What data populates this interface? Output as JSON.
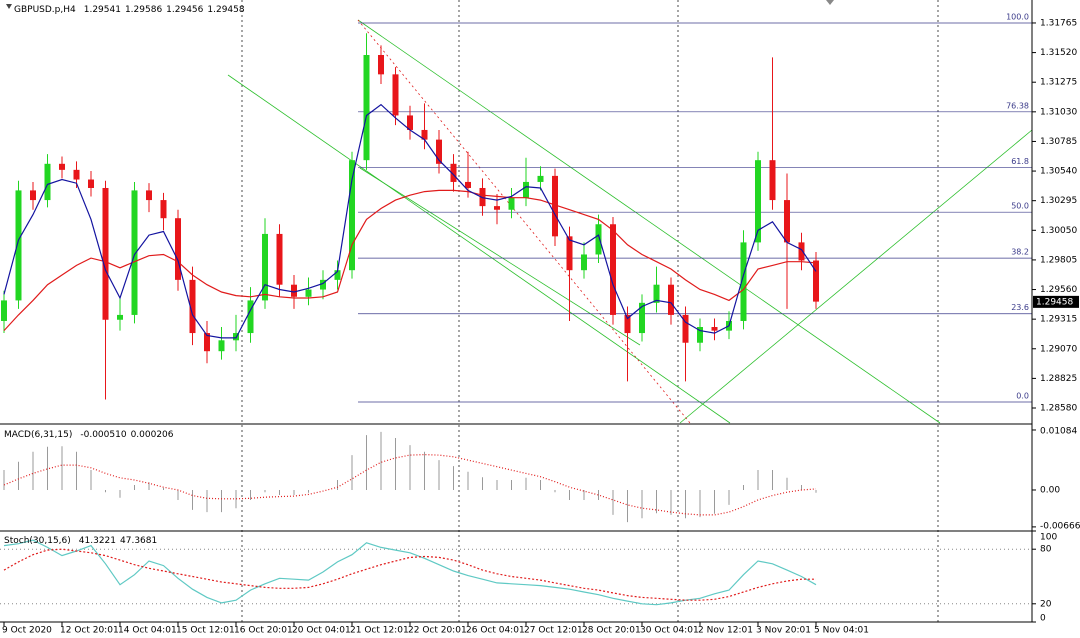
{
  "chart_data": [
    {
      "type": "candlestick",
      "title": "GBPUSD.p,H4",
      "readout": [
        1.29541,
        1.29586,
        1.29456,
        1.29458
      ],
      "categories": [
        "9 Oct 2020",
        null,
        null,
        null,
        "12 Oct 20:01",
        null,
        null,
        null,
        "14 Oct 04:01",
        null,
        null,
        null,
        "15 Oct 12:01",
        null,
        null,
        null,
        "16 Oct 20:01",
        null,
        null,
        null,
        "20 Oct 04:01",
        null,
        null,
        null,
        "21 Oct 12:01",
        null,
        null,
        null,
        "22 Oct 20:01",
        null,
        null,
        null,
        "26 Oct 04:01",
        null,
        null,
        null,
        "27 Oct 12:01",
        null,
        null,
        null,
        "28 Oct 20:01",
        null,
        null,
        null,
        "30 Oct 04:01",
        null,
        null,
        null,
        "2 Nov 12:01",
        null,
        null,
        null,
        "3 Nov 20:01",
        null,
        null,
        null,
        "5 Nov 04:01"
      ],
      "open": [
        1.293,
        1.2947,
        1.3038,
        1.303,
        1.306,
        1.3055,
        1.3047,
        1.304,
        1.2931,
        1.2935,
        1.3038,
        1.303,
        1.3015,
        1.2964,
        1.292,
        1.2905,
        1.2914,
        1.292,
        1.2947,
        1.3002,
        1.296,
        1.295,
        1.2956,
        1.2964,
        1.2972,
        1.3063,
        1.315,
        1.3134,
        1.31,
        1.3088,
        1.308,
        1.306,
        1.3045,
        1.304,
        1.3025,
        1.3022,
        1.3032,
        1.3045,
        1.305,
        1.3,
        1.2972,
        1.2985,
        1.301,
        1.2935,
        1.292,
        1.2945,
        1.296,
        1.2935,
        1.2912,
        1.2925,
        1.2922,
        1.293,
        1.2995,
        1.3063,
        1.303,
        1.2995,
        1.298
      ],
      "high": [
        1.2955,
        1.3046,
        1.3045,
        1.3068,
        1.3066,
        1.3062,
        1.3054,
        1.3046,
        1.295,
        1.3045,
        1.3044,
        1.3036,
        1.3022,
        1.2975,
        1.293,
        1.2925,
        1.2935,
        1.2958,
        1.3015,
        1.301,
        1.2968,
        1.2966,
        1.2972,
        1.298,
        1.307,
        1.3168,
        1.3158,
        1.314,
        1.3108,
        1.311,
        1.3088,
        1.3068,
        1.307,
        1.3048,
        1.3035,
        1.304,
        1.3065,
        1.3058,
        1.3056,
        1.3008,
        1.2995,
        1.3018,
        1.3016,
        1.2942,
        1.2952,
        1.2975,
        1.2966,
        1.2942,
        1.2932,
        1.2932,
        1.2938,
        1.3005,
        1.307,
        1.3148,
        1.3052,
        1.3003,
        1.2987
      ],
      "low": [
        1.292,
        1.294,
        1.3022,
        1.3024,
        1.3048,
        1.304,
        1.3033,
        1.2865,
        1.2922,
        1.2928,
        1.302,
        1.3005,
        1.2955,
        1.291,
        1.2895,
        1.2898,
        1.2905,
        1.2912,
        1.294,
        1.295,
        1.294,
        1.2943,
        1.2948,
        1.2956,
        1.2965,
        1.3055,
        1.3126,
        1.3092,
        1.308,
        1.3072,
        1.3052,
        1.3037,
        1.3032,
        1.3017,
        1.301,
        1.3015,
        1.3025,
        1.3038,
        1.2992,
        1.293,
        1.2965,
        1.2978,
        1.2927,
        1.288,
        1.2913,
        1.2937,
        1.2927,
        1.288,
        1.2905,
        1.2914,
        1.2915,
        1.2923,
        1.2988,
        1.3022,
        1.294,
        1.2972,
        1.294
      ],
      "close": [
        1.2947,
        1.3038,
        1.303,
        1.306,
        1.3055,
        1.3047,
        1.304,
        1.2931,
        1.2935,
        1.3038,
        1.303,
        1.3015,
        1.2964,
        1.292,
        1.2905,
        1.2914,
        1.292,
        1.2947,
        1.3002,
        1.296,
        1.295,
        1.2956,
        1.2964,
        1.2972,
        1.3063,
        1.315,
        1.3134,
        1.31,
        1.3088,
        1.308,
        1.306,
        1.3045,
        1.304,
        1.3025,
        1.3022,
        1.3032,
        1.3045,
        1.305,
        1.3,
        1.2972,
        1.2985,
        1.301,
        1.2935,
        1.292,
        1.2945,
        1.296,
        1.2935,
        1.2912,
        1.2925,
        1.2922,
        1.293,
        1.2995,
        1.3063,
        1.303,
        1.2995,
        1.298,
        1.2946
      ],
      "up_color": "#22d622",
      "down_color": "#e8161a",
      "series": [
        {
          "color": "#e01b1b",
          "values": [
            1.2922,
            1.2935,
            1.2947,
            1.296,
            1.2968,
            1.2976,
            1.2982,
            1.2979,
            1.2974,
            1.2979,
            1.2984,
            1.2985,
            1.2979,
            1.2968,
            1.296,
            1.2954,
            1.2951,
            1.295,
            1.2952,
            1.295,
            1.2949,
            1.2949,
            1.295,
            1.2954,
            1.2993,
            1.3014,
            1.3023,
            1.303,
            1.3034,
            1.3037,
            1.3038,
            1.3038,
            1.3037,
            1.3034,
            1.3033,
            1.3032,
            1.3032,
            1.303,
            1.3026,
            1.3022,
            1.3018,
            1.3014,
            1.3005,
            1.2993,
            1.2985,
            1.2979,
            1.2973,
            1.2964,
            1.2956,
            1.2952,
            1.2947,
            1.2956,
            1.2973,
            1.2976,
            1.2979,
            1.2979,
            1.2978
          ]
        },
        {
          "color": "#1414a0",
          "values": [
            1.2952,
            1.2997,
            1.3018,
            1.3043,
            1.3047,
            1.3044,
            1.3014,
            1.2972,
            1.2949,
            1.2985,
            1.3001,
            1.3004,
            1.298,
            1.2935,
            1.2918,
            1.2916,
            1.2916,
            1.2939,
            1.296,
            1.2956,
            1.2954,
            1.2957,
            1.2961,
            1.2971,
            1.3047,
            1.31,
            1.3109,
            1.3098,
            1.3088,
            1.308,
            1.3063,
            1.3051,
            1.3038,
            1.3032,
            1.303,
            1.3033,
            1.3041,
            1.304,
            1.3018,
            1.2997,
            1.2993,
            1.3001,
            1.296,
            1.2932,
            1.2942,
            1.2947,
            1.2945,
            1.2929,
            1.2922,
            1.292,
            1.2926,
            1.2968,
            1.3005,
            1.3012,
            1.2995,
            1.2989,
            1.2971
          ]
        }
      ],
      "ylim": [
        1.28456,
        1.31955
      ],
      "yticks": [
        1.31765,
        {
          "value": 1.3152,
          "label": "1.31520"
        },
        1.31275,
        {
          "value": 1.3103,
          "label": "1.31030"
        },
        1.30785,
        {
          "value": 1.3054,
          "label": "1.30540"
        },
        1.30295,
        {
          "value": 1.3005,
          "label": "1.30050"
        },
        1.29805,
        {
          "value": 1.2956,
          "label": "1.29560"
        },
        1.29315,
        {
          "value": 1.2907,
          "label": "1.29070"
        },
        1.28825,
        {
          "value": 1.2858,
          "label": "1.28580"
        }
      ],
      "last_price": 1.29458,
      "fib_levels": [
        {
          "label": "100.0",
          "price": 1.31765
        },
        {
          "label": "76.38",
          "price": 1.3103
        },
        {
          "label": "61.8",
          "price": 1.3057
        },
        {
          "label": "50.0",
          "price": 1.302
        },
        {
          "label": "38.2",
          "price": 1.2982
        },
        {
          "label": "23.6",
          "price": 1.2936
        },
        {
          "label": "0.0",
          "price": 1.2863
        }
      ]
    },
    {
      "type": "macd",
      "title": "MACD(6,31,15)",
      "readout": [
        {
          "value": -0.00051,
          "label": "-0.000510"
        },
        0.000206
      ],
      "color": "#9a9a9a",
      "values": [
        0.0036,
        0.0051,
        0.0069,
        0.0078,
        0.0079,
        0.0069,
        0.0036,
        -0.0004,
        -0.0014,
        0.0009,
        0.0014,
        0.0004,
        -0.0018,
        -0.0036,
        -0.004,
        -0.004,
        -0.0033,
        -0.0018,
        -0.0004,
        -0.0009,
        -0.0009,
        -0.0005,
        0.0,
        0.0018,
        0.0063,
        0.0099,
        0.0105,
        0.0094,
        0.0081,
        0.0069,
        0.0054,
        0.0043,
        0.0033,
        0.0023,
        0.0018,
        0.0018,
        0.0022,
        0.0018,
        -0.0004,
        -0.0018,
        -0.0018,
        -0.0018,
        -0.0045,
        -0.0058,
        -0.0051,
        -0.0042,
        -0.0045,
        -0.0051,
        -0.0049,
        -0.0043,
        -0.0027,
        0.0009,
        0.0036,
        0.0036,
        0.0022,
        0.0009,
        -0.0005
      ],
      "signal_color": "#e01b1b",
      "signal": [
        0.0009,
        0.002,
        0.003,
        0.0038,
        0.0045,
        0.0045,
        0.004,
        0.003,
        0.0022,
        0.0018,
        0.0012,
        0.0005,
        0.0,
        -0.001,
        -0.0015,
        -0.0016,
        -0.0016,
        -0.0015,
        -0.0013,
        -0.0012,
        -0.0011,
        -0.0008,
        -0.0002,
        0.0005,
        0.002,
        0.0036,
        0.005,
        0.0058,
        0.0063,
        0.0064,
        0.0063,
        0.006,
        0.0054,
        0.0048,
        0.0042,
        0.0036,
        0.003,
        0.0024,
        0.0015,
        0.0005,
        -0.0002,
        -0.0009,
        -0.0018,
        -0.0027,
        -0.0033,
        -0.0036,
        -0.004,
        -0.0043,
        -0.0045,
        -0.0045,
        -0.004,
        -0.003,
        -0.0018,
        -0.001,
        -0.0004,
        0.0,
        0.0002
      ],
      "ylim": [
        -0.00723,
        0.01174
      ],
      "yticks": [
        0.01084,
        {
          "value": 0,
          "label": "0.00"
        },
        -0.006669
      ]
    },
    {
      "type": "line",
      "title": "Stoch(30,15,6)",
      "readout": [
        41.3221,
        47.3681
      ],
      "series": [
        {
          "color": "#5fc9c4",
          "values": [
            84,
            86,
            90,
            82,
            73,
            78,
            84,
            64,
            41,
            52,
            67,
            62,
            48,
            36,
            27,
            21,
            24,
            35,
            42,
            48,
            47,
            46,
            55,
            66,
            74,
            87,
            82,
            79,
            76,
            70,
            63,
            56,
            51,
            47,
            43,
            42,
            41,
            40,
            38,
            36,
            33,
            30,
            26,
            23,
            20,
            19,
            21,
            24,
            26,
            31,
            35,
            52,
            67,
            64,
            57,
            50,
            41
          ]
        },
        {
          "color": "#e01b1b",
          "values": [
            57,
            66,
            74,
            79,
            80,
            78,
            76,
            73,
            68,
            63,
            59,
            56,
            53,
            50,
            47,
            44,
            42,
            40,
            38,
            37,
            37,
            38,
            42,
            47,
            53,
            58,
            63,
            67,
            71,
            72,
            71,
            68,
            63,
            57,
            53,
            50,
            48,
            46,
            43,
            40,
            37,
            35,
            32,
            29,
            27,
            26,
            25,
            24,
            24,
            25,
            28,
            33,
            38,
            42,
            45,
            47,
            47
          ]
        }
      ],
      "ylim": [
        0,
        100
      ],
      "yticks": [
        100,
        80,
        20,
        0
      ]
    }
  ]
}
